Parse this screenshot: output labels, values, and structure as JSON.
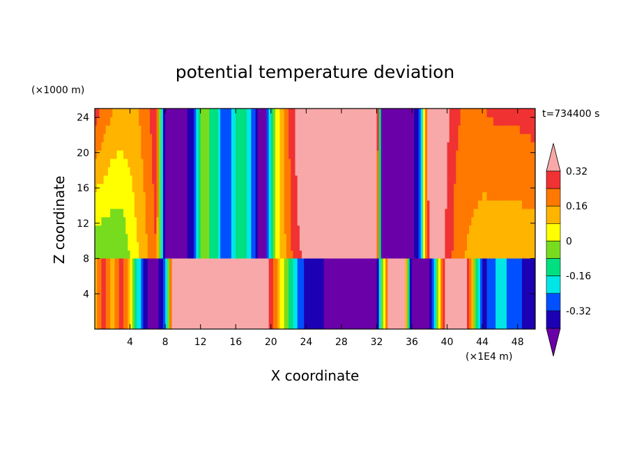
{
  "chart_data": {
    "type": "heatmap",
    "title": "potential temperature deviation",
    "xlabel": "X coordinate",
    "ylabel": "Z coordinate",
    "x_unit": "(×1E4 m)",
    "y_unit": "(×1000 m)",
    "time_label": "t=734400 s",
    "x_range": [
      0,
      50
    ],
    "y_range": [
      0,
      25
    ],
    "x_ticks": [
      4,
      8,
      12,
      16,
      20,
      24,
      28,
      32,
      36,
      40,
      44,
      48
    ],
    "y_ticks": [
      4,
      8,
      12,
      16,
      20,
      24
    ],
    "colorbar": {
      "levels": [
        -0.4,
        -0.32,
        -0.24,
        -0.16,
        -0.08,
        0,
        0.08,
        0.16,
        0.24,
        0.32,
        0.4
      ],
      "labels": [
        "-0.32",
        "-0.16",
        "0",
        "0.16",
        "0.32"
      ],
      "label_values": [
        -0.32,
        -0.16,
        0,
        0.16,
        0.32
      ],
      "colors": [
        "#6a00a8",
        "#1c00b4",
        "#0050ff",
        "#00e6e6",
        "#00e080",
        "#78dc1e",
        "#ffff00",
        "#ffb400",
        "#ff7800",
        "#f03232",
        "#f8a8a8"
      ]
    },
    "upper_layer": {
      "z_range": [
        8,
        25
      ],
      "x_nodes": [
        0,
        1,
        2,
        3,
        4,
        5,
        6,
        7,
        7.8,
        8.2,
        9,
        10,
        11,
        11.8,
        12.4,
        13,
        14,
        14.6,
        15,
        16,
        17,
        18,
        18.8,
        19.4,
        20,
        21,
        22,
        23,
        24,
        26,
        28,
        30,
        32,
        32.6,
        33.2,
        34,
        36,
        37,
        37.5,
        38,
        39,
        40,
        41,
        42,
        44,
        46,
        48,
        50
      ],
      "bottom": [
        -0.08,
        -0.08,
        -0.08,
        -0.08,
        0,
        0.08,
        0.16,
        0.24,
        -0.36,
        -0.44,
        -0.44,
        -0.44,
        -0.36,
        -0.12,
        0.0,
        -0.08,
        -0.16,
        -0.3,
        -0.3,
        -0.16,
        -0.1,
        -0.28,
        -0.44,
        -0.4,
        -0.12,
        0.08,
        0.2,
        0.3,
        0.34,
        0.36,
        0.36,
        0.36,
        0.36,
        -0.44,
        -0.44,
        -0.44,
        -0.44,
        -0.3,
        0.1,
        0.36,
        0.36,
        0.3,
        0.2,
        0.16,
        0.1,
        0.1,
        0.1,
        0.1
      ],
      "top": [
        0.28,
        0.22,
        0.16,
        0.14,
        0.14,
        0.16,
        0.22,
        0.3,
        -0.36,
        -0.44,
        -0.44,
        -0.44,
        -0.36,
        -0.12,
        0.0,
        -0.08,
        -0.16,
        -0.3,
        -0.3,
        -0.16,
        -0.1,
        -0.28,
        -0.44,
        -0.4,
        -0.12,
        0.1,
        0.24,
        0.36,
        0.44,
        0.44,
        0.44,
        0.44,
        0.44,
        -0.44,
        -0.44,
        -0.44,
        -0.44,
        -0.3,
        0.1,
        0.44,
        0.4,
        0.34,
        0.26,
        0.22,
        0.24,
        0.26,
        0.26,
        0.28
      ]
    },
    "lower_layer": {
      "z_range": [
        0,
        8
      ],
      "x_nodes": [
        0,
        1,
        2,
        3,
        4,
        5,
        6,
        7,
        8,
        9,
        10,
        12,
        14,
        16,
        18,
        20,
        22,
        24,
        26,
        28,
        30,
        32,
        33.5,
        35,
        36,
        38,
        40,
        42,
        44,
        46,
        48,
        50
      ],
      "values": [
        0.12,
        0.28,
        0.1,
        0.26,
        0.1,
        -0.2,
        -0.4,
        -0.44,
        -0.3,
        0.44,
        0.44,
        0.44,
        0.44,
        0.44,
        0.44,
        0.3,
        -0.1,
        -0.36,
        -0.4,
        -0.44,
        -0.44,
        -0.44,
        0.44,
        0.44,
        -0.44,
        -0.44,
        0.44,
        0.44,
        -0.36,
        -0.2,
        -0.3,
        -0.4
      ]
    }
  }
}
